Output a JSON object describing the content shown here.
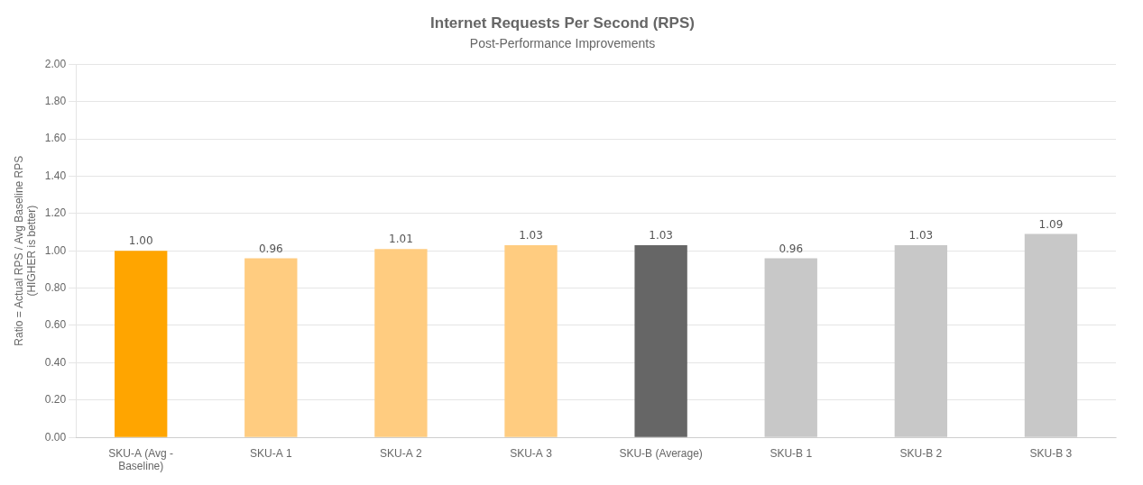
{
  "chart_data": {
    "type": "bar",
    "title": "Internet Requests Per Second (RPS)",
    "subtitle": "Post-Performance Improvements",
    "ylabel": [
      "Ratio = Actual RPS / Avg Baseline RPS",
      "(HIGHER is better)"
    ],
    "categories": [
      "SKU-A (Avg -\nBaseline)",
      "SKU-A 1",
      "SKU-A 2",
      "SKU-A 3",
      "SKU-B (Average)",
      "SKU-B 1",
      "SKU-B 2",
      "SKU-B 3"
    ],
    "values": [
      1.0,
      0.96,
      1.01,
      1.03,
      1.03,
      0.96,
      1.03,
      1.09
    ],
    "value_labels": [
      "1.00",
      "0.96",
      "1.01",
      "1.03",
      "1.03",
      "0.96",
      "1.03",
      "1.09"
    ],
    "colors": [
      "#FFA500",
      "#FFCC80",
      "#FFCC80",
      "#FFCC80",
      "#666666",
      "#C8C8C8",
      "#C8C8C8",
      "#C8C8C8"
    ],
    "ylim": [
      0.0,
      2.0
    ],
    "yticks": [
      {
        "value": 0.0,
        "label": "0.00"
      },
      {
        "value": 0.2,
        "label": "0.20"
      },
      {
        "value": 0.4,
        "label": "0.40"
      },
      {
        "value": 0.6,
        "label": "0.60"
      },
      {
        "value": 0.8,
        "label": "0.80"
      },
      {
        "value": 1.0,
        "label": "1.00"
      },
      {
        "value": 1.2,
        "label": "1.20"
      },
      {
        "value": 1.4,
        "label": "1.40"
      },
      {
        "value": 1.6,
        "label": "1.60"
      },
      {
        "value": 1.8,
        "label": "1.80"
      },
      {
        "value": 2.0,
        "label": "2.00"
      }
    ],
    "grid": true,
    "data_labels": true
  }
}
